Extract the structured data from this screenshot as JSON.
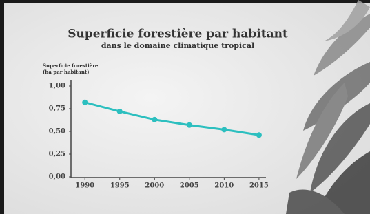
{
  "chart_data": {
    "type": "line",
    "title": "Superficie forestière par habitant",
    "subtitle": "dans le domaine climatique tropical",
    "y_label": [
      "Superficie forestière",
      "(ha par habitant)"
    ],
    "x": [
      1990,
      1995,
      2000,
      2005,
      2010,
      2015
    ],
    "values": [
      0.82,
      0.72,
      0.63,
      0.57,
      0.52,
      0.46
    ],
    "color": "#2cbfbf",
    "xlim": [
      1988,
      2016
    ],
    "xticks": [
      1990,
      1995,
      2000,
      2005,
      2010,
      2015
    ],
    "ylim": [
      0,
      1
    ],
    "yticks": [
      {
        "value": 0,
        "label": "0,00"
      },
      {
        "value": 0.25,
        "label": "0,25"
      },
      {
        "value": 0.5,
        "label": "0,50"
      },
      {
        "value": 0.75,
        "label": "0,75"
      },
      {
        "value": 1,
        "label": "1,00"
      }
    ],
    "grid": false
  }
}
